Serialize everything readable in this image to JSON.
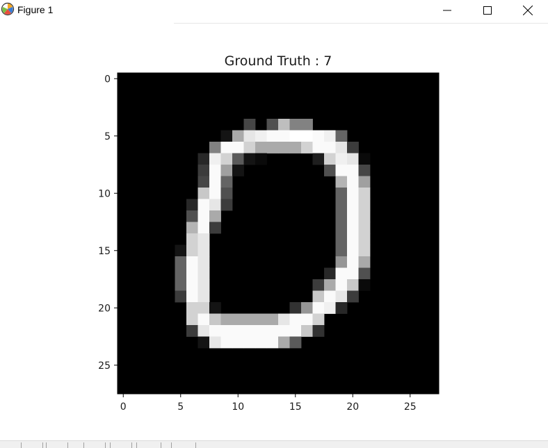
{
  "window": {
    "title": "Figure 1",
    "icon": "matplotlib-logo-icon",
    "controls": [
      "minimize-icon",
      "maximize-icon",
      "close-icon"
    ]
  },
  "toolbar": {
    "buttons": [
      "home-icon",
      "back-icon",
      "forward-icon",
      "pan-icon",
      "zoom-icon",
      "configure-subplots-icon",
      "save-icon"
    ]
  },
  "chart_data": {
    "type": "heatmap",
    "title": "Ground Truth : 7",
    "xlabel": "",
    "ylabel": "",
    "colormap": "gray",
    "xlim": [
      -0.5,
      27.5
    ],
    "ylim": [
      27.5,
      -0.5
    ],
    "xticks": [
      0,
      5,
      10,
      15,
      20,
      25
    ],
    "yticks": [
      0,
      5,
      10,
      15,
      20,
      25
    ],
    "vmin": 0,
    "vmax": 255,
    "values": [
      [
        0,
        0,
        0,
        0,
        0,
        0,
        0,
        0,
        0,
        0,
        0,
        0,
        0,
        0,
        0,
        0,
        0,
        0,
        0,
        0,
        0,
        0,
        0,
        0,
        0,
        0,
        0,
        0
      ],
      [
        0,
        0,
        0,
        0,
        0,
        0,
        0,
        0,
        0,
        0,
        0,
        0,
        0,
        0,
        0,
        0,
        0,
        0,
        0,
        0,
        0,
        0,
        0,
        0,
        0,
        0,
        0,
        0
      ],
      [
        0,
        0,
        0,
        0,
        0,
        0,
        0,
        0,
        0,
        0,
        0,
        0,
        0,
        0,
        0,
        0,
        0,
        0,
        0,
        0,
        0,
        0,
        0,
        0,
        0,
        0,
        0,
        0
      ],
      [
        0,
        0,
        0,
        0,
        0,
        0,
        0,
        0,
        0,
        0,
        0,
        0,
        0,
        0,
        0,
        0,
        0,
        0,
        0,
        0,
        0,
        0,
        0,
        0,
        0,
        0,
        0,
        0
      ],
      [
        0,
        0,
        0,
        0,
        0,
        0,
        0,
        0,
        0,
        0,
        0,
        70,
        0,
        80,
        190,
        130,
        130,
        0,
        0,
        0,
        0,
        0,
        0,
        0,
        0,
        0,
        0,
        0
      ],
      [
        0,
        0,
        0,
        0,
        0,
        0,
        0,
        0,
        0,
        20,
        170,
        230,
        240,
        250,
        250,
        255,
        255,
        250,
        240,
        100,
        0,
        0,
        0,
        0,
        0,
        0,
        0,
        0
      ],
      [
        0,
        0,
        0,
        0,
        0,
        0,
        0,
        0,
        130,
        250,
        250,
        210,
        170,
        170,
        170,
        170,
        210,
        250,
        250,
        230,
        60,
        0,
        0,
        0,
        0,
        0,
        0,
        0
      ],
      [
        0,
        0,
        0,
        0,
        0,
        0,
        0,
        40,
        240,
        210,
        90,
        20,
        10,
        0,
        0,
        0,
        0,
        30,
        210,
        240,
        230,
        10,
        0,
        0,
        0,
        0,
        0,
        0
      ],
      [
        0,
        0,
        0,
        0,
        0,
        0,
        0,
        60,
        250,
        160,
        20,
        0,
        0,
        0,
        0,
        0,
        0,
        0,
        80,
        250,
        250,
        70,
        0,
        0,
        0,
        0,
        0,
        0
      ],
      [
        0,
        0,
        0,
        0,
        0,
        0,
        0,
        70,
        250,
        100,
        0,
        0,
        0,
        0,
        0,
        0,
        0,
        0,
        0,
        180,
        250,
        160,
        0,
        0,
        0,
        0,
        0,
        0
      ],
      [
        0,
        0,
        0,
        0,
        0,
        0,
        0,
        200,
        250,
        80,
        0,
        0,
        0,
        0,
        0,
        0,
        0,
        0,
        0,
        100,
        250,
        210,
        0,
        0,
        0,
        0,
        0,
        0
      ],
      [
        0,
        0,
        0,
        0,
        0,
        0,
        40,
        250,
        230,
        60,
        0,
        0,
        0,
        0,
        0,
        0,
        0,
        0,
        0,
        100,
        250,
        210,
        0,
        0,
        0,
        0,
        0,
        0
      ],
      [
        0,
        0,
        0,
        0,
        0,
        0,
        80,
        250,
        170,
        0,
        0,
        0,
        0,
        0,
        0,
        0,
        0,
        0,
        0,
        100,
        250,
        210,
        0,
        0,
        0,
        0,
        0,
        0
      ],
      [
        0,
        0,
        0,
        0,
        0,
        0,
        180,
        250,
        60,
        0,
        0,
        0,
        0,
        0,
        0,
        0,
        0,
        0,
        0,
        100,
        250,
        210,
        0,
        0,
        0,
        0,
        0,
        0
      ],
      [
        0,
        0,
        0,
        0,
        0,
        0,
        210,
        230,
        0,
        0,
        0,
        0,
        0,
        0,
        0,
        0,
        0,
        0,
        0,
        100,
        250,
        210,
        0,
        0,
        0,
        0,
        0,
        0
      ],
      [
        0,
        0,
        0,
        0,
        0,
        20,
        210,
        230,
        0,
        0,
        0,
        0,
        0,
        0,
        0,
        0,
        0,
        0,
        0,
        100,
        250,
        210,
        0,
        0,
        0,
        0,
        0,
        0
      ],
      [
        0,
        0,
        0,
        0,
        0,
        100,
        250,
        230,
        0,
        0,
        0,
        0,
        0,
        0,
        0,
        0,
        0,
        0,
        0,
        150,
        250,
        170,
        0,
        0,
        0,
        0,
        0,
        0
      ],
      [
        0,
        0,
        0,
        0,
        0,
        100,
        250,
        230,
        0,
        0,
        0,
        0,
        0,
        0,
        0,
        0,
        0,
        0,
        40,
        250,
        250,
        80,
        0,
        0,
        0,
        0,
        0,
        0
      ],
      [
        0,
        0,
        0,
        0,
        0,
        100,
        250,
        230,
        0,
        0,
        0,
        0,
        0,
        0,
        0,
        0,
        0,
        60,
        170,
        250,
        200,
        10,
        0,
        0,
        0,
        0,
        0,
        0
      ],
      [
        0,
        0,
        0,
        0,
        0,
        60,
        250,
        230,
        0,
        0,
        0,
        0,
        0,
        0,
        0,
        0,
        0,
        200,
        250,
        230,
        60,
        0,
        0,
        0,
        0,
        0,
        0,
        0
      ],
      [
        0,
        0,
        0,
        0,
        0,
        0,
        210,
        210,
        20,
        0,
        0,
        0,
        0,
        0,
        0,
        50,
        150,
        250,
        240,
        40,
        0,
        0,
        0,
        0,
        0,
        0,
        0,
        0
      ],
      [
        0,
        0,
        0,
        0,
        0,
        0,
        210,
        250,
        200,
        170,
        170,
        170,
        170,
        170,
        230,
        250,
        250,
        210,
        0,
        0,
        0,
        0,
        0,
        0,
        0,
        0,
        0,
        0
      ],
      [
        0,
        0,
        0,
        0,
        0,
        0,
        60,
        230,
        250,
        250,
        250,
        250,
        250,
        250,
        250,
        250,
        200,
        50,
        0,
        0,
        0,
        0,
        0,
        0,
        0,
        0,
        0,
        0
      ],
      [
        0,
        0,
        0,
        0,
        0,
        0,
        0,
        20,
        230,
        250,
        250,
        250,
        250,
        250,
        170,
        90,
        0,
        0,
        0,
        0,
        0,
        0,
        0,
        0,
        0,
        0,
        0,
        0
      ],
      [
        0,
        0,
        0,
        0,
        0,
        0,
        0,
        0,
        0,
        0,
        0,
        0,
        0,
        0,
        0,
        0,
        0,
        0,
        0,
        0,
        0,
        0,
        0,
        0,
        0,
        0,
        0,
        0
      ],
      [
        0,
        0,
        0,
        0,
        0,
        0,
        0,
        0,
        0,
        0,
        0,
        0,
        0,
        0,
        0,
        0,
        0,
        0,
        0,
        0,
        0,
        0,
        0,
        0,
        0,
        0,
        0,
        0
      ],
      [
        0,
        0,
        0,
        0,
        0,
        0,
        0,
        0,
        0,
        0,
        0,
        0,
        0,
        0,
        0,
        0,
        0,
        0,
        0,
        0,
        0,
        0,
        0,
        0,
        0,
        0,
        0,
        0
      ],
      [
        0,
        0,
        0,
        0,
        0,
        0,
        0,
        0,
        0,
        0,
        0,
        0,
        0,
        0,
        0,
        0,
        0,
        0,
        0,
        0,
        0,
        0,
        0,
        0,
        0,
        0,
        0,
        0
      ]
    ]
  }
}
